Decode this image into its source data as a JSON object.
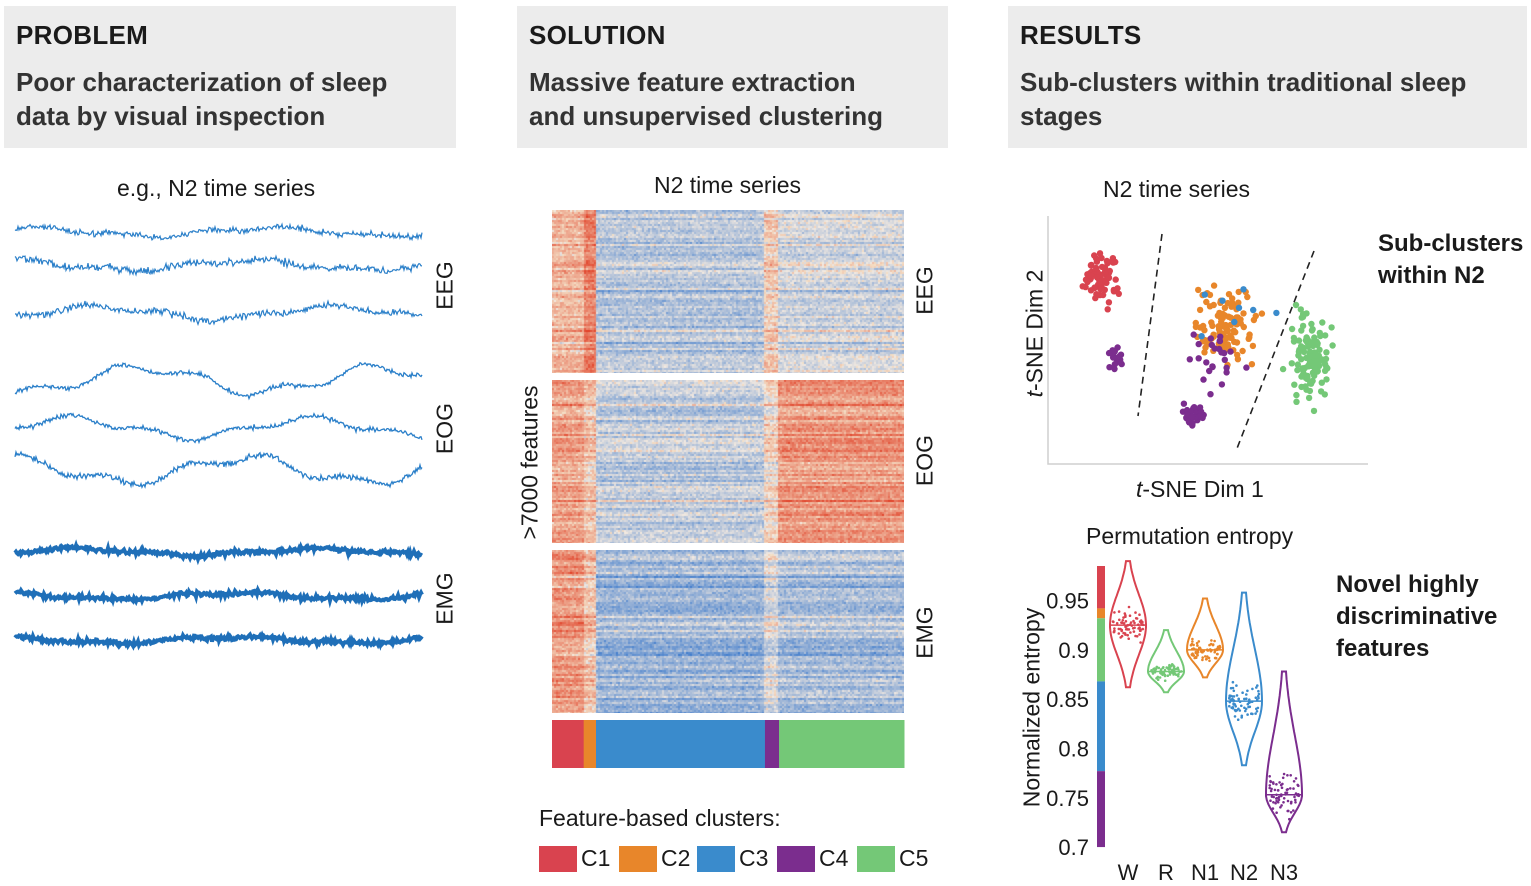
{
  "panels": {
    "problem": {
      "title": "PROBLEM",
      "subtitle_line1": "Poor characterization of sleep",
      "subtitle_line2": "data by visual inspection",
      "caption": "e.g., N2 time series",
      "channels": [
        "EEG",
        "EOG",
        "EMG"
      ]
    },
    "solution": {
      "title": "SOLUTION",
      "subtitle_line1": "Massive feature extraction",
      "subtitle_line2": "and unsupervised clustering",
      "caption": "N2 time series",
      "y_label": ">7000 features",
      "channels": [
        "EEG",
        "EOG",
        "EMG"
      ],
      "legend_title": "Feature-based clusters:",
      "clusters": [
        {
          "label": "C1",
          "color": "#d9434f",
          "fraction": 0.09
        },
        {
          "label": "C2",
          "color": "#e8862a",
          "fraction": 0.035
        },
        {
          "label": "C3",
          "color": "#3a8bcc",
          "fraction": 0.48
        },
        {
          "label": "C4",
          "color": "#7b2d8e",
          "fraction": 0.04
        },
        {
          "label": "C5",
          "color": "#74c877",
          "fraction": 0.355
        }
      ]
    },
    "results": {
      "title": "RESULTS",
      "subtitle_line1": "Sub-clusters within traditional sleep",
      "subtitle_line2": "stages",
      "scatter_caption": "N2 time series",
      "scatter_xlabel_italic": "t",
      "scatter_xlabel_rest": "-SNE Dim 1",
      "scatter_ylabel_italic": "t",
      "scatter_ylabel_rest": "-SNE Dim 2",
      "note1_line1": "Sub-clusters",
      "note1_line2": "within N2",
      "violin_title": "Permutation entropy",
      "violin_ylabel": "Normalized entropy",
      "note2_line1": "Novel highly",
      "note2_line2": "discriminative",
      "note2_line3": "features"
    }
  },
  "chart_data": {
    "type": "violin",
    "title": "Permutation entropy",
    "ylabel": "Normalized entropy",
    "ylim": [
      0.7,
      0.98
    ],
    "yticks": [
      "0.95",
      "0.9",
      "0.85",
      "0.8",
      "0.75",
      "0.7"
    ],
    "categories": [
      "W",
      "R",
      "N1",
      "N2",
      "N3"
    ],
    "medians": [
      0.925,
      0.878,
      0.9,
      0.848,
      0.753
    ],
    "ranges": [
      [
        0.862,
        0.99
      ],
      [
        0.857,
        0.92
      ],
      [
        0.872,
        0.952
      ],
      [
        0.783,
        0.958
      ],
      [
        0.715,
        0.878
      ]
    ],
    "colors": [
      "#d9434f",
      "#74c877",
      "#e8862a",
      "#3a8bcc",
      "#7b2d8e"
    ],
    "colorbar": [
      {
        "from": 0.942,
        "to": 0.985,
        "color": "#d9434f"
      },
      {
        "from": 0.932,
        "to": 0.942,
        "color": "#e8862a"
      },
      {
        "from": 0.868,
        "to": 0.932,
        "color": "#74c877"
      },
      {
        "from": 0.777,
        "to": 0.868,
        "color": "#3a8bcc"
      },
      {
        "from": 0.7,
        "to": 0.777,
        "color": "#7b2d8e"
      }
    ]
  }
}
